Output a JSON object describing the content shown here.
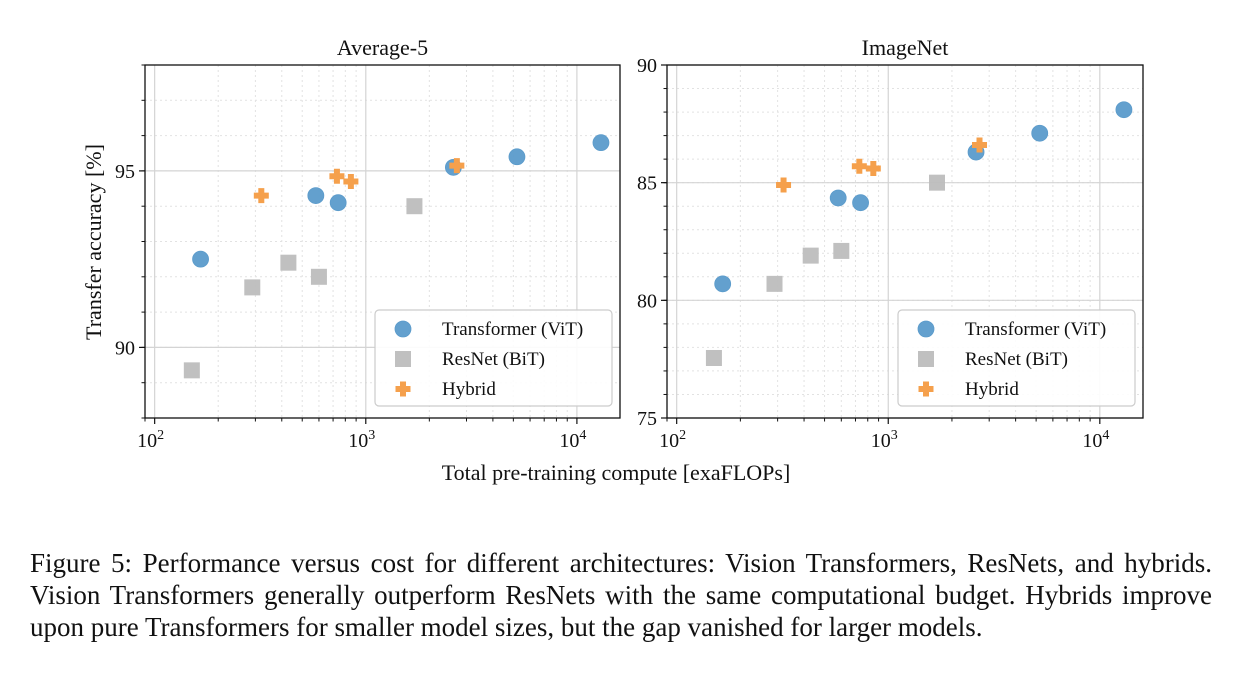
{
  "figure": {
    "shared_ylabel": "Transfer accuracy [%]",
    "shared_xlabel": "Total pre-training compute [exaFLOPs]",
    "x_tick_base": "10",
    "x_tick_exponents": [
      "2",
      "3",
      "4"
    ]
  },
  "chart_data": [
    {
      "type": "scatter",
      "title": "Average-5",
      "xscale": "log",
      "xlim": [
        90,
        16000
      ],
      "ylim": [
        88,
        98
      ],
      "y_ticks": [
        90,
        95
      ],
      "grid": true,
      "legend_position": "lower right",
      "series": [
        {
          "name": "Transformer (ViT)",
          "marker": "circle",
          "color": "#5b9bcb",
          "points": [
            [
              165,
              92.5
            ],
            [
              580,
              94.3
            ],
            [
              740,
              94.1
            ],
            [
              2600,
              95.1
            ],
            [
              5200,
              95.4
            ],
            [
              13000,
              95.8
            ]
          ]
        },
        {
          "name": "ResNet (BiT)",
          "marker": "square",
          "color": "#bdbdbd",
          "points": [
            [
              150,
              89.35
            ],
            [
              290,
              91.7
            ],
            [
              430,
              92.4
            ],
            [
              600,
              92.0
            ],
            [
              1700,
              94.0
            ]
          ]
        },
        {
          "name": "Hybrid",
          "marker": "plus",
          "color": "#f5a04c",
          "points": [
            [
              320,
              94.3
            ],
            [
              730,
              94.85
            ],
            [
              850,
              94.7
            ],
            [
              2700,
              95.15
            ]
          ]
        }
      ]
    },
    {
      "type": "scatter",
      "title": "ImageNet",
      "xscale": "log",
      "xlim": [
        90,
        16000
      ],
      "ylim": [
        75,
        90
      ],
      "y_ticks": [
        75,
        80,
        85,
        90
      ],
      "grid": true,
      "legend_position": "lower right",
      "series": [
        {
          "name": "Transformer (ViT)",
          "marker": "circle",
          "color": "#5b9bcb",
          "points": [
            [
              165,
              80.7
            ],
            [
              580,
              84.35
            ],
            [
              740,
              84.15
            ],
            [
              2600,
              86.3
            ],
            [
              5200,
              87.1
            ],
            [
              13000,
              88.1
            ]
          ]
        },
        {
          "name": "ResNet (BiT)",
          "marker": "square",
          "color": "#bdbdbd",
          "points": [
            [
              150,
              77.55
            ],
            [
              290,
              80.7
            ],
            [
              430,
              81.9
            ],
            [
              600,
              82.1
            ],
            [
              1700,
              85.0
            ]
          ]
        },
        {
          "name": "Hybrid",
          "marker": "plus",
          "color": "#f5a04c",
          "points": [
            [
              320,
              84.9
            ],
            [
              730,
              85.7
            ],
            [
              850,
              85.6
            ],
            [
              2700,
              86.6
            ]
          ]
        }
      ]
    }
  ],
  "caption": "Figure 5: Performance versus cost for different architectures: Vision Transformers, ResNets, and hybrids. Vision Transformers generally outperform ResNets with the same computational budget. Hybrids improve upon pure Transformers for smaller model sizes, but the gap vanished for larger models."
}
